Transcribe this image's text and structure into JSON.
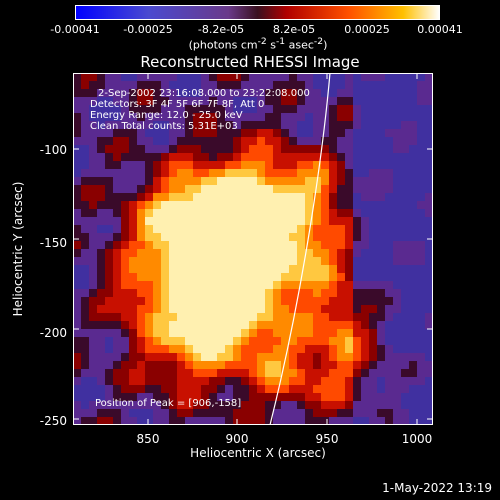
{
  "colorbar": {
    "tick_labels": [
      "-0.00041",
      "-0.00025",
      "-8.2e-05",
      "8.2e-05",
      "0.00025",
      "0.00041"
    ],
    "units_html": "(photons cm<sup>-2</sup> s<sup>-1</sup> asec<sup>-2</sup>)"
  },
  "plot": {
    "title": "Reconstructed RHESSI Image",
    "xlabel": "Heliocentric X (arcsec)",
    "ylabel": "Heliocentric Y (arcsec)",
    "x_ticks": [
      "850",
      "900",
      "950",
      "1000"
    ],
    "y_ticks": [
      "-100",
      "-150",
      "-200",
      "-250"
    ],
    "info": [
      "2-Sep-2002 23:16:08.000 to 23:22:08.000",
      "Detectors: 3F 4F 5F 6F 7F 8F, Att 0",
      "Energy Range: 12.0 - 25.0 keV",
      "Clean    Total counts: 5.31E+03"
    ],
    "peak": "Position of Peak = [906,-158]"
  },
  "timestamp": "1-May-2022 13:19"
}
